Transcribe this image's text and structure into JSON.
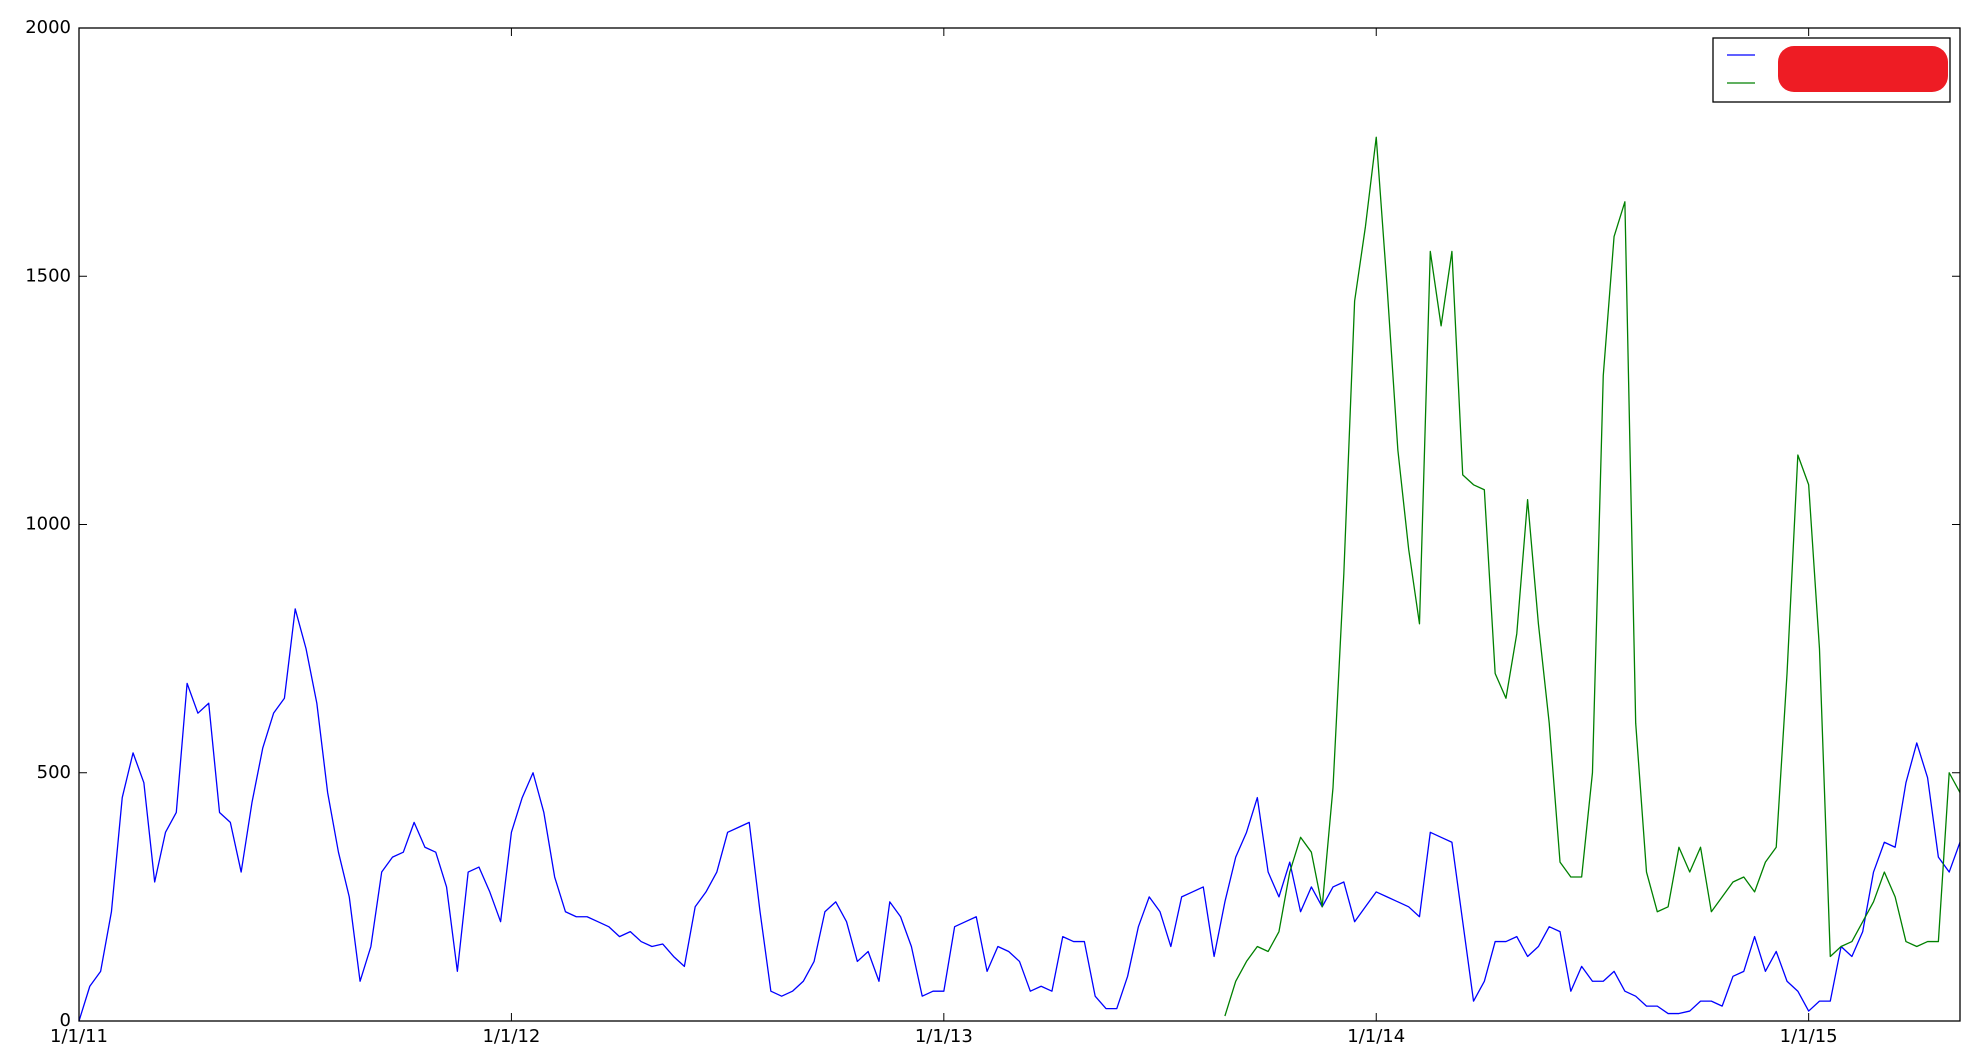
{
  "chart_data": {
    "type": "line",
    "x": [
      2011,
      2011.025,
      2011.05,
      2011.075,
      2011.1,
      2011.125,
      2011.15,
      2011.175,
      2011.2,
      2011.225,
      2011.25,
      2011.275,
      2011.3,
      2011.325,
      2011.35,
      2011.375,
      2011.4,
      2011.425,
      2011.45,
      2011.475,
      2011.5,
      2011.525,
      2011.55,
      2011.575,
      2011.6,
      2011.625,
      2011.65,
      2011.675,
      2011.7,
      2011.725,
      2011.75,
      2011.775,
      2011.8,
      2011.825,
      2011.85,
      2011.875,
      2011.9,
      2011.925,
      2011.95,
      2011.975,
      2012,
      2012.025,
      2012.05,
      2012.075,
      2012.1,
      2012.125,
      2012.15,
      2012.175,
      2012.2,
      2012.225,
      2012.25,
      2012.275,
      2012.3,
      2012.325,
      2012.35,
      2012.375,
      2012.4,
      2012.425,
      2012.45,
      2012.475,
      2012.5,
      2012.525,
      2012.55,
      2012.575,
      2012.6,
      2012.625,
      2012.65,
      2012.675,
      2012.7,
      2012.725,
      2012.75,
      2012.775,
      2012.8,
      2012.825,
      2012.85,
      2012.875,
      2012.9,
      2012.925,
      2012.95,
      2012.975,
      2013,
      2013.025,
      2013.05,
      2013.075,
      2013.1,
      2013.125,
      2013.15,
      2013.175,
      2013.2,
      2013.225,
      2013.25,
      2013.275,
      2013.3,
      2013.325,
      2013.35,
      2013.375,
      2013.4,
      2013.425,
      2013.45,
      2013.475,
      2013.5,
      2013.525,
      2013.55,
      2013.575,
      2013.6,
      2013.625,
      2013.65,
      2013.675,
      2013.7,
      2013.725,
      2013.75,
      2013.775,
      2013.8,
      2013.825,
      2013.85,
      2013.875,
      2013.9,
      2013.925,
      2013.95,
      2013.975,
      2014,
      2014.025,
      2014.05,
      2014.075,
      2014.1,
      2014.125,
      2014.15,
      2014.175,
      2014.2,
      2014.225,
      2014.25,
      2014.275,
      2014.3,
      2014.325,
      2014.35,
      2014.375,
      2014.4,
      2014.425,
      2014.45,
      2014.475,
      2014.5,
      2014.525,
      2014.55,
      2014.575,
      2014.6,
      2014.625,
      2014.65,
      2014.675,
      2014.7,
      2014.725,
      2014.75,
      2014.775,
      2014.8,
      2014.825,
      2014.85,
      2014.875,
      2014.9,
      2014.925,
      2014.95,
      2014.975,
      2015,
      2015.025,
      2015.05,
      2015.075,
      2015.1,
      2015.125,
      2015.15,
      2015.175,
      2015.2,
      2015.225,
      2015.25,
      2015.275,
      2015.3,
      2015.325,
      2015.35
    ],
    "series": [
      {
        "color": "#0000ff",
        "values": [
          0,
          70,
          100,
          220,
          450,
          540,
          480,
          280,
          380,
          420,
          680,
          620,
          640,
          420,
          400,
          300,
          440,
          550,
          620,
          650,
          830,
          750,
          640,
          460,
          340,
          250,
          80,
          150,
          300,
          330,
          340,
          400,
          350,
          340,
          270,
          100,
          300,
          310,
          260,
          200,
          380,
          450,
          500,
          420,
          290,
          220,
          210,
          210,
          200,
          190,
          170,
          180,
          160,
          150,
          155,
          130,
          110,
          230,
          260,
          300,
          380,
          390,
          400,
          220,
          60,
          50,
          60,
          80,
          120,
          220,
          240,
          200,
          120,
          140,
          80,
          240,
          210,
          150,
          50,
          60,
          60,
          190,
          200,
          210,
          100,
          150,
          140,
          120,
          60,
          70,
          60,
          170,
          160,
          160,
          50,
          25,
          25,
          90,
          190,
          250,
          220,
          150,
          250,
          260,
          270,
          130,
          240,
          330,
          380,
          450,
          300,
          250,
          320,
          220,
          270,
          230,
          270,
          280,
          200,
          230,
          260,
          250,
          240,
          230,
          210,
          380,
          370,
          360,
          200,
          40,
          80,
          160,
          160,
          170,
          130,
          150,
          190,
          180,
          60,
          110,
          80,
          80,
          100,
          60,
          50,
          30,
          30,
          15,
          15,
          20,
          40,
          40,
          30,
          90,
          100,
          170,
          100,
          140,
          80,
          60,
          20,
          40,
          40,
          150,
          130,
          180,
          300,
          360,
          350,
          480,
          560,
          490,
          330,
          300,
          360
        ]
      },
      {
        "color": "#008000",
        "values": [
          null,
          null,
          null,
          null,
          null,
          null,
          null,
          null,
          null,
          null,
          null,
          null,
          null,
          null,
          null,
          null,
          null,
          null,
          null,
          null,
          null,
          null,
          null,
          null,
          null,
          null,
          null,
          null,
          null,
          null,
          null,
          null,
          null,
          null,
          null,
          null,
          null,
          null,
          null,
          null,
          null,
          null,
          null,
          null,
          null,
          null,
          null,
          null,
          null,
          null,
          null,
          null,
          null,
          null,
          null,
          null,
          null,
          null,
          null,
          null,
          null,
          null,
          null,
          null,
          null,
          null,
          null,
          null,
          null,
          null,
          null,
          null,
          null,
          null,
          null,
          null,
          null,
          null,
          null,
          null,
          null,
          null,
          null,
          null,
          null,
          null,
          null,
          null,
          null,
          null,
          null,
          null,
          null,
          null,
          null,
          null,
          null,
          null,
          null,
          null,
          null,
          null,
          null,
          null,
          null,
          null,
          10,
          80,
          120,
          150,
          140,
          180,
          300,
          370,
          340,
          230,
          470,
          900,
          1450,
          1600,
          1780,
          1480,
          1150,
          950,
          800,
          1550,
          1400,
          1550,
          1100,
          1080,
          1070,
          700,
          650,
          780,
          1050,
          800,
          600,
          320,
          290,
          290,
          500,
          1300,
          1580,
          1650,
          600,
          300,
          220,
          230,
          350,
          300,
          350,
          220,
          250,
          280,
          290,
          260,
          320,
          350,
          700,
          1140,
          1080,
          750,
          130,
          150,
          160,
          200,
          240,
          300,
          250,
          160,
          150,
          160,
          160,
          500,
          460
        ]
      }
    ],
    "xlim": [
      2011,
      2015.35
    ],
    "xticks": [
      {
        "value": 2011,
        "label": "1/1/11"
      },
      {
        "value": 2012,
        "label": "1/1/12"
      },
      {
        "value": 2013,
        "label": "1/1/13"
      },
      {
        "value": 2014,
        "label": "1/1/14"
      },
      {
        "value": 2015,
        "label": "1/1/15"
      }
    ],
    "ylim": [
      0,
      2000
    ],
    "yticks": [
      0,
      500,
      1000,
      1500,
      2000
    ],
    "grid": false,
    "legend": "upper right"
  }
}
